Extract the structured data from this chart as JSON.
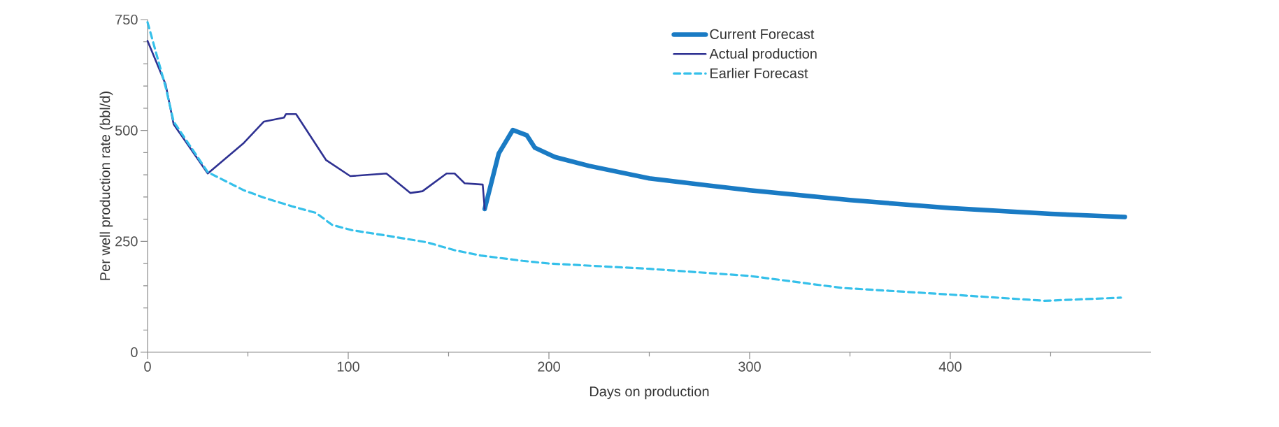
{
  "chart_data": {
    "type": "line",
    "xlabel": "Days on production",
    "ylabel": "Per well production rate (bbl/d)",
    "xlim": [
      0,
      500
    ],
    "ylim": [
      0,
      750
    ],
    "xticks": [
      0,
      {
        "value": 50,
        "label": null
      },
      100,
      {
        "value": 150,
        "label": null
      },
      200,
      {
        "value": 250,
        "label": null
      },
      300,
      {
        "value": 350,
        "label": null
      },
      400,
      {
        "value": 450,
        "label": null
      }
    ],
    "yticks": [
      0,
      {
        "value": 50,
        "label": null
      },
      {
        "value": 100,
        "label": null
      },
      {
        "value": 150,
        "label": null
      },
      {
        "value": 200,
        "label": null
      },
      250,
      {
        "value": 300,
        "label": null
      },
      {
        "value": 350,
        "label": null
      },
      {
        "value": 400,
        "label": null
      },
      {
        "value": 450,
        "label": null
      },
      500,
      {
        "value": 550,
        "label": null
      },
      {
        "value": 600,
        "label": null
      },
      {
        "value": 650,
        "label": null
      },
      {
        "value": 700,
        "label": null
      },
      750
    ],
    "grid": false,
    "legend": "top right",
    "marker": "none",
    "series": [
      {
        "name": "Current Forecast",
        "color": "#1a7bc4",
        "line_style": "solid",
        "x": [
          168,
          175,
          182,
          189,
          193,
          203,
          220,
          250,
          300,
          350,
          400,
          450,
          487
        ],
        "values": [
          323,
          448,
          501,
          489,
          461,
          440,
          420,
          392,
          365,
          343,
          325,
          312,
          305
        ]
      },
      {
        "name": "Actual production",
        "color": "#2e3192",
        "line_style": "solid",
        "x": [
          0,
          9,
          13,
          30,
          48,
          58,
          68,
          69,
          74,
          89,
          101,
          119,
          131,
          137,
          149,
          153,
          158,
          167,
          168
        ],
        "values": [
          702,
          604,
          514,
          403,
          472,
          520,
          529,
          537,
          537,
          433,
          397,
          403,
          359,
          363,
          403,
          403,
          381,
          378,
          323
        ]
      },
      {
        "name": "Earlier Forecast",
        "color": "#35c0ea",
        "line_style": "dashed",
        "x": [
          0,
          9,
          13,
          30,
          48,
          59,
          72,
          84,
          92,
          102,
          119,
          139,
          153,
          166,
          187,
          200,
          250,
          300,
          346,
          400,
          447,
          485
        ],
        "values": [
          744,
          598,
          520,
          406,
          365,
          347,
          329,
          314,
          287,
          275,
          263,
          248,
          230,
          218,
          206,
          200,
          188,
          172,
          145,
          130,
          116,
          123
        ]
      }
    ]
  }
}
